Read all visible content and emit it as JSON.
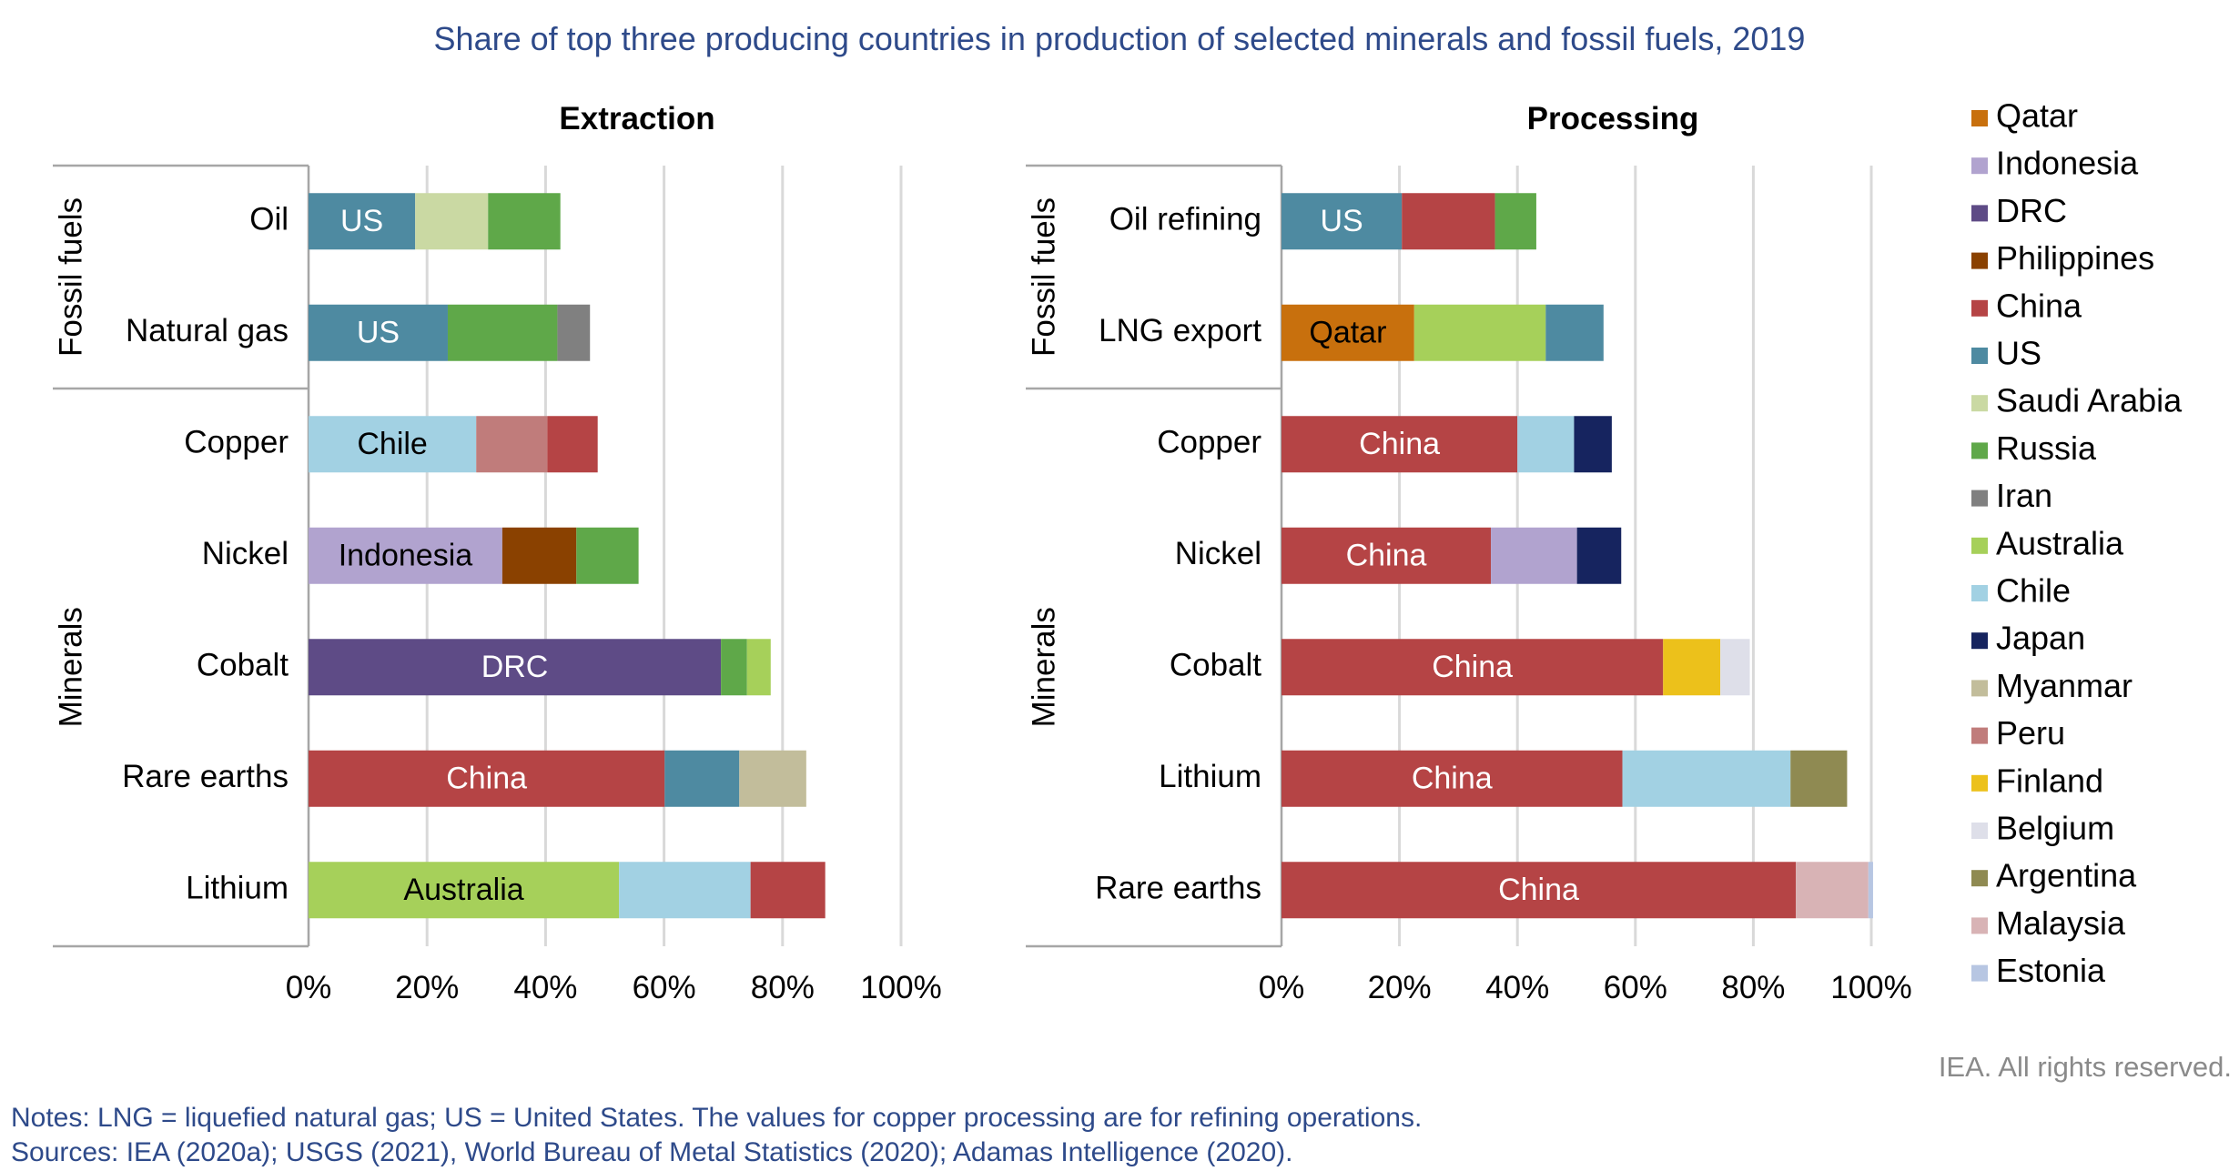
{
  "title": "Share of top three producing countries in production of selected minerals and fossil fuels, 2019",
  "notes": "Notes: LNG = liquefied natural gas; US = United States. The values for copper processing are for refining operations.",
  "sources": "Sources: IEA (2020a); USGS (2021), World Bureau of Metal Statistics (2020); Adamas Intelligence (2020).",
  "rights": "IEA. All rights reserved.",
  "colors": {
    "Qatar": "#c8700d",
    "Indonesia": "#b1a3cf",
    "DRC": "#5e4b86",
    "Philippines": "#8a4100",
    "China": "#b54445",
    "US": "#4e8aa1",
    "Saudi Arabia": "#cad9a3",
    "Russia": "#5fa849",
    "Iran": "#808080",
    "Australia": "#a6d05a",
    "Chile": "#a2d1e3",
    "Japan": "#16245f",
    "Myanmar": "#c2bd9b",
    "Peru": "#c07c7b",
    "Finland": "#ecc11b",
    "Belgium": "#dedfe9",
    "Argentina": "#8f8a52",
    "Malaysia": "#d8b3b5",
    "Estonia": "#b7c6e2"
  },
  "legend": [
    "Qatar",
    "Indonesia",
    "DRC",
    "Philippines",
    "China",
    "US",
    "Saudi Arabia",
    "Russia",
    "Iran",
    "Australia",
    "Chile",
    "Japan",
    "Myanmar",
    "Peru",
    "Finland",
    "Belgium",
    "Argentina",
    "Malaysia",
    "Estonia"
  ],
  "chart_data": [
    {
      "type": "bar",
      "orientation": "horizontal",
      "stacked": true,
      "title": "Extraction",
      "xlim": [
        0,
        100
      ],
      "xticks": [
        "0%",
        "20%",
        "40%",
        "60%",
        "80%",
        "100%"
      ],
      "grid": true,
      "groups": [
        {
          "label": "Fossil fuels",
          "categories": [
            "Oil",
            "Natural gas"
          ]
        },
        {
          "label": "Minerals",
          "categories": [
            "Copper",
            "Nickel",
            "Cobalt",
            "Rare earths",
            "Lithium"
          ]
        }
      ],
      "bars": [
        {
          "category": "Oil",
          "segments": [
            {
              "country": "US",
              "value": 18,
              "label": "US"
            },
            {
              "country": "Saudi Arabia",
              "value": 12.3
            },
            {
              "country": "Russia",
              "value": 12.2
            }
          ]
        },
        {
          "category": "Natural gas",
          "segments": [
            {
              "country": "US",
              "value": 23.5,
              "label": "US"
            },
            {
              "country": "Russia",
              "value": 18.5
            },
            {
              "country": "Iran",
              "value": 5.5
            }
          ]
        },
        {
          "category": "Copper",
          "segments": [
            {
              "country": "Chile",
              "value": 28.3,
              "label": "Chile"
            },
            {
              "country": "Peru",
              "value": 12
            },
            {
              "country": "China",
              "value": 8.5
            }
          ]
        },
        {
          "category": "Nickel",
          "segments": [
            {
              "country": "Indonesia",
              "value": 32.7,
              "label": "Indonesia"
            },
            {
              "country": "Philippines",
              "value": 12.5
            },
            {
              "country": "Russia",
              "value": 10.5
            }
          ]
        },
        {
          "category": "Cobalt",
          "segments": [
            {
              "country": "DRC",
              "value": 69.6,
              "label": "DRC"
            },
            {
              "country": "Russia",
              "value": 4.4
            },
            {
              "country": "Australia",
              "value": 4
            }
          ]
        },
        {
          "category": "Rare earths",
          "segments": [
            {
              "country": "China",
              "value": 60.1,
              "label": "China"
            },
            {
              "country": "US",
              "value": 12.6
            },
            {
              "country": "Myanmar",
              "value": 11.3
            }
          ]
        },
        {
          "category": "Lithium",
          "segments": [
            {
              "country": "Australia",
              "value": 52.4,
              "label": "Australia"
            },
            {
              "country": "Chile",
              "value": 22.2
            },
            {
              "country": "China",
              "value": 12.6
            }
          ]
        }
      ]
    },
    {
      "type": "bar",
      "orientation": "horizontal",
      "stacked": true,
      "title": "Processing",
      "xlim": [
        0,
        100
      ],
      "xticks": [
        "0%",
        "20%",
        "40%",
        "60%",
        "80%",
        "100%"
      ],
      "grid": true,
      "groups": [
        {
          "label": "Fossil fuels",
          "categories": [
            "Oil refining",
            "LNG export"
          ]
        },
        {
          "label": "Minerals",
          "categories": [
            "Copper",
            "Nickel",
            "Cobalt",
            "Lithium",
            "Rare earths"
          ]
        }
      ],
      "bars": [
        {
          "category": "Oil refining",
          "segments": [
            {
              "country": "US",
              "value": 20.4,
              "label": "US"
            },
            {
              "country": "China",
              "value": 15.8
            },
            {
              "country": "Russia",
              "value": 7
            }
          ]
        },
        {
          "category": "LNG export",
          "segments": [
            {
              "country": "Qatar",
              "value": 22.5,
              "label": "Qatar"
            },
            {
              "country": "Australia",
              "value": 22.3
            },
            {
              "country": "US",
              "value": 9.8
            }
          ]
        },
        {
          "category": "Copper",
          "segments": [
            {
              "country": "China",
              "value": 40,
              "label": "China"
            },
            {
              "country": "Chile",
              "value": 9.6
            },
            {
              "country": "Japan",
              "value": 6.4
            }
          ]
        },
        {
          "category": "Nickel",
          "segments": [
            {
              "country": "China",
              "value": 35.5,
              "label": "China"
            },
            {
              "country": "Indonesia",
              "value": 14.6
            },
            {
              "country": "Japan",
              "value": 7.5
            }
          ]
        },
        {
          "category": "Cobalt",
          "segments": [
            {
              "country": "China",
              "value": 64.7,
              "label": "China"
            },
            {
              "country": "Finland",
              "value": 9.7
            },
            {
              "country": "Belgium",
              "value": 5
            }
          ]
        },
        {
          "category": "Lithium",
          "segments": [
            {
              "country": "China",
              "value": 57.8,
              "label": "China"
            },
            {
              "country": "Chile",
              "value": 28.5
            },
            {
              "country": "Argentina",
              "value": 9.6
            }
          ]
        },
        {
          "category": "Rare earths",
          "segments": [
            {
              "country": "China",
              "value": 87.2,
              "label": "China"
            },
            {
              "country": "Malaysia",
              "value": 12.3
            },
            {
              "country": "Estonia",
              "value": 0.8
            }
          ]
        }
      ]
    }
  ]
}
